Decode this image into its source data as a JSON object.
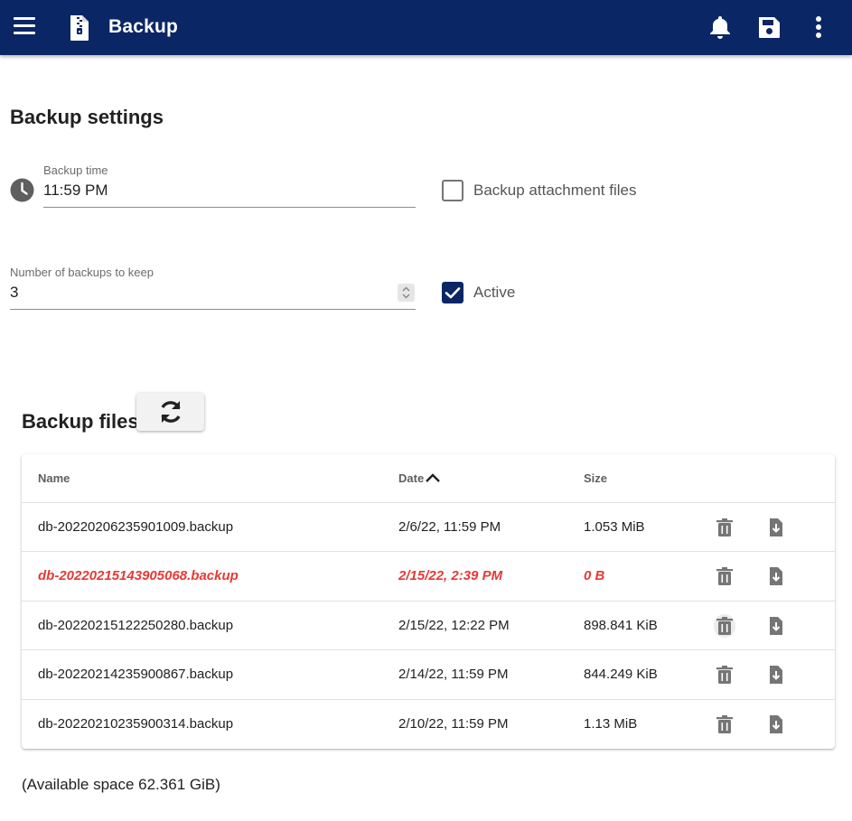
{
  "appbar": {
    "title": "Backup",
    "icons": {
      "menu": "menu-icon",
      "file": "zip-file-icon",
      "bell": "bell-icon",
      "save": "save-icon",
      "more": "more-vert-icon"
    },
    "color": "#0b2665"
  },
  "settings": {
    "heading": "Backup settings",
    "backup_time": {
      "label": "Backup time",
      "value": "11:59 PM"
    },
    "keep": {
      "label": "Number of backups to keep",
      "value": "3"
    },
    "attachments": {
      "label": "Backup attachment files",
      "checked": false
    },
    "active": {
      "label": "Active",
      "checked": true
    }
  },
  "files": {
    "heading": "Backup files",
    "columns": {
      "name": "Name",
      "date": "Date",
      "size": "Size"
    },
    "rows": [
      {
        "name": "db-20220206235901009.backup",
        "date": "2/6/22, 11:59 PM",
        "size": "1.053 MiB",
        "error": false
      },
      {
        "name": "db-20220215143905068.backup",
        "date": "2/15/22, 2:39 PM",
        "size": "0 B",
        "error": true
      },
      {
        "name": "db-20220215122250280.backup",
        "date": "2/15/22, 12:22 PM",
        "size": "898.841 KiB",
        "error": false
      },
      {
        "name": "db-20220214235900867.backup",
        "date": "2/14/22, 11:59 PM",
        "size": "844.249 KiB",
        "error": false
      },
      {
        "name": "db-20220210235900314.backup",
        "date": "2/10/22, 11:59 PM",
        "size": "1.13 MiB",
        "error": false
      }
    ],
    "error_color": "#e53935"
  },
  "footer": {
    "available_space": "(Available space 62.361 GiB)"
  }
}
